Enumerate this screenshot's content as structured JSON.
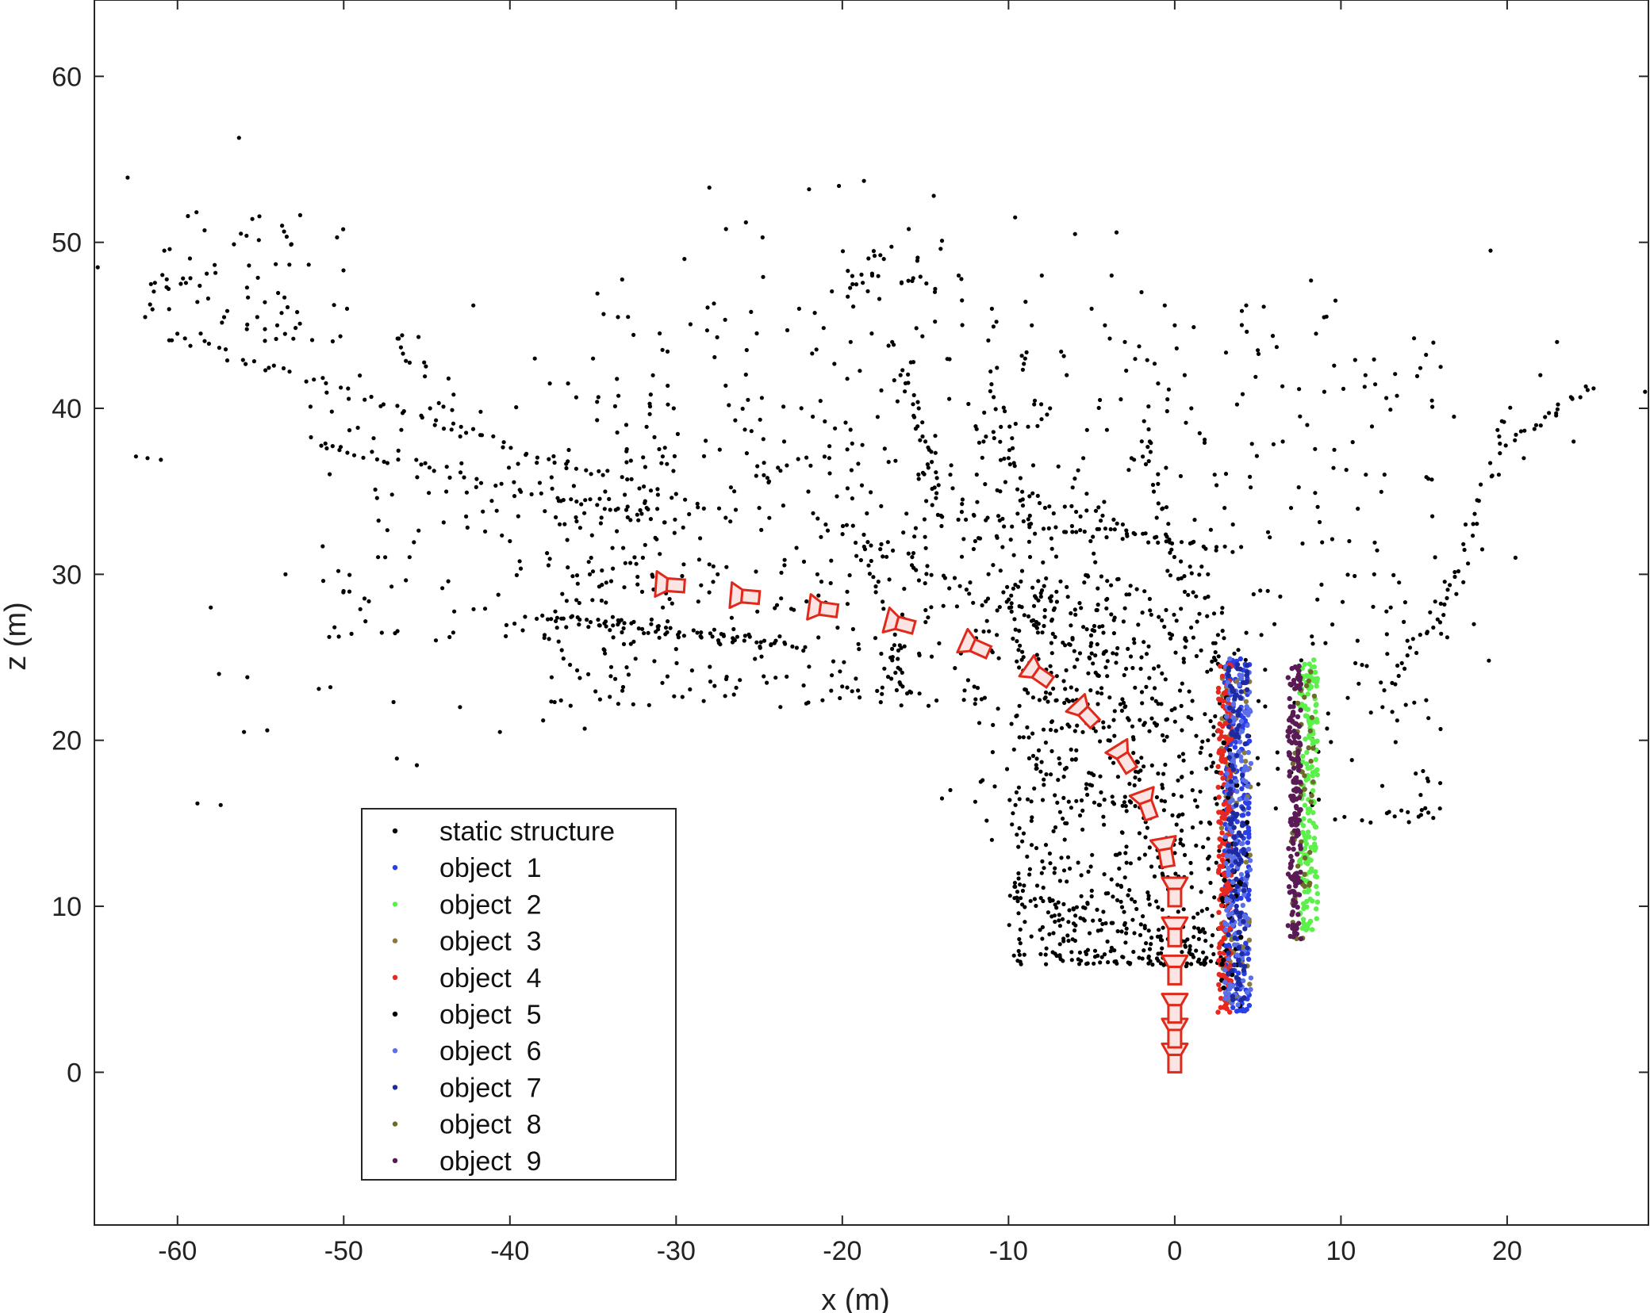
{
  "chart_data": {
    "type": "scatter",
    "title": "",
    "xlabel": "x (m)",
    "ylabel": "z (m)",
    "xlim": [
      -65,
      28.5
    ],
    "ylim": [
      -9.2,
      64.6
    ],
    "xticks": [
      -60,
      -50,
      -40,
      -30,
      -20,
      -10,
      0,
      10,
      20
    ],
    "yticks": [
      0,
      10,
      20,
      30,
      40,
      50,
      60
    ],
    "grid": false,
    "legend_position": "bottom-left",
    "series": [
      {
        "name": "static structure",
        "color": "#000000",
        "segments": [
          {
            "from": [
              -60,
              44.2
            ],
            "to": [
              -28,
              34
            ],
            "n": 70
          },
          {
            "from": [
              -52,
              38
            ],
            "to": [
              -30,
              33
            ],
            "n": 45
          },
          {
            "from": [
              -38,
              27.5
            ],
            "to": [
              -22,
              25.5
            ],
            "n": 45
          },
          {
            "from": [
              -20,
              33
            ],
            "to": [
              -5,
              25
            ],
            "n": 30
          },
          {
            "from": [
              -13,
              33.5
            ],
            "to": [
              4,
              31.5
            ],
            "n": 45
          },
          {
            "from": [
              -9,
              35
            ],
            "to": [
              -1,
              32
            ],
            "n": 20
          },
          {
            "from": [
              -10,
              11
            ],
            "to": [
              2,
              7
            ],
            "n": 35
          },
          {
            "from": [
              -7,
              7
            ],
            "to": [
              2,
              6.5
            ],
            "n": 30
          },
          {
            "from": [
              -16,
              42
            ],
            "to": [
              -14,
              33
            ],
            "n": 25
          },
          {
            "from": [
              -11,
              42
            ],
            "to": [
              -9,
              33
            ],
            "n": 20
          },
          {
            "from": [
              -19,
              32
            ],
            "to": [
              -16,
              23
            ],
            "n": 25
          },
          {
            "from": [
              16,
              26
            ],
            "to": [
              20,
              40
            ],
            "n": 30
          },
          {
            "from": [
              20,
              38
            ],
            "to": [
              25,
              41.3
            ],
            "n": 20
          },
          {
            "from": [
              13,
              23
            ],
            "to": [
              17,
              30
            ],
            "n": 20
          },
          {
            "from": [
              -2,
              39
            ],
            "to": [
              0,
              30
            ],
            "n": 25
          },
          {
            "from": [
              -47,
              44.5
            ],
            "to": [
              -45,
              42
            ],
            "n": 10
          },
          {
            "from": [
              -39,
              27.5
            ],
            "to": [
              -24,
              26
            ],
            "n": 25
          }
        ],
        "points": [
          [
            -64.8,
            48.5
          ],
          [
            -63,
            53.9
          ],
          [
            -62.5,
            37.1
          ],
          [
            -61.8,
            37
          ],
          [
            -61,
            36.9
          ],
          [
            -60.5,
            44.1
          ],
          [
            -59.8,
            47.5
          ],
          [
            -58.8,
            16.2
          ],
          [
            -57.4,
            16.1
          ],
          [
            -57.5,
            24
          ],
          [
            -58,
            28
          ],
          [
            -56.3,
            56.3
          ],
          [
            -56,
            20.5
          ],
          [
            -55.8,
            23.8
          ],
          [
            -55.2,
            45.5
          ],
          [
            -54.6,
            20.6
          ],
          [
            -54,
            45
          ],
          [
            -53.5,
            30
          ],
          [
            -52.8,
            45.8
          ],
          [
            -52,
            40.1
          ],
          [
            -51.5,
            23.1
          ],
          [
            -50.8,
            23.2
          ],
          [
            -50.4,
            50.3
          ],
          [
            -49.8,
            46
          ],
          [
            -49,
            27.9
          ],
          [
            -48.2,
            38.2
          ],
          [
            -47,
            22.3
          ],
          [
            -46.8,
            18.9
          ],
          [
            -45.6,
            18.5
          ],
          [
            -45.5,
            44.3
          ],
          [
            -44.8,
            40
          ],
          [
            -44,
            40.1
          ],
          [
            -43,
            22
          ],
          [
            -42.2,
            46.2
          ],
          [
            -40.6,
            20.5
          ],
          [
            -40,
            32
          ],
          [
            -39.5,
            33.5
          ],
          [
            -38.5,
            43
          ],
          [
            -38,
            21.2
          ],
          [
            -37.6,
            41.5
          ],
          [
            -36.5,
            41.5
          ],
          [
            -35.5,
            20.7
          ],
          [
            -35,
            43
          ],
          [
            -34.2,
            29.5
          ],
          [
            -33.5,
            45.5
          ],
          [
            -33,
            39
          ],
          [
            -32,
            31
          ],
          [
            -31.5,
            27
          ],
          [
            -30.8,
            28
          ],
          [
            -30,
            25.5
          ],
          [
            -29.5,
            49
          ],
          [
            -28.5,
            26.5
          ],
          [
            -28,
            53.3
          ],
          [
            -27.5,
            30
          ],
          [
            -27,
            50.8
          ],
          [
            -26.5,
            35
          ],
          [
            -25.8,
            51.2
          ],
          [
            -25,
            34
          ],
          [
            -24.8,
            50.3
          ],
          [
            -24,
            26
          ],
          [
            -23.5,
            38
          ],
          [
            -22.6,
            46
          ],
          [
            -22,
            53.2
          ],
          [
            -21.5,
            30
          ],
          [
            -21,
            33
          ],
          [
            -20.2,
            53.4
          ],
          [
            -19.5,
            44
          ],
          [
            -19,
            25.5
          ],
          [
            -18.7,
            53.7
          ],
          [
            -18.2,
            48
          ],
          [
            -17.5,
            49
          ],
          [
            -17,
            44
          ],
          [
            -16.5,
            42
          ],
          [
            -16,
            50.8
          ],
          [
            -15.4,
            40
          ],
          [
            -15,
            38
          ],
          [
            -14.5,
            52.8
          ],
          [
            -14,
            50.1
          ],
          [
            -13.5,
            36
          ],
          [
            -13,
            48
          ],
          [
            -12.8,
            46.5
          ],
          [
            -12,
            32
          ],
          [
            -11.5,
            38
          ],
          [
            -11,
            46
          ],
          [
            -10.5,
            35
          ],
          [
            -10,
            37
          ],
          [
            -9.6,
            51.5
          ],
          [
            -9,
            43
          ],
          [
            -8.6,
            45
          ],
          [
            -8,
            48
          ],
          [
            -7.5,
            40
          ],
          [
            -7,
            36.5
          ],
          [
            -6.5,
            42
          ],
          [
            -6,
            50.5
          ],
          [
            -5.5,
            37
          ],
          [
            -5,
            46
          ],
          [
            -4.5,
            40.5
          ],
          [
            -4.2,
            45
          ],
          [
            -3.8,
            48
          ],
          [
            -3.5,
            50.6
          ],
          [
            -3,
            44
          ],
          [
            -2.6,
            37
          ],
          [
            -2,
            47
          ],
          [
            -1.5,
            38
          ],
          [
            -1,
            41.5
          ],
          [
            -0.6,
            46.2
          ],
          [
            0,
            45
          ],
          [
            0.6,
            42
          ],
          [
            1,
            40
          ],
          [
            1.5,
            38.5
          ],
          [
            2,
            30
          ],
          [
            2.4,
            36
          ],
          [
            3,
            34
          ],
          [
            3.5,
            33
          ],
          [
            4.3,
            46.2
          ],
          [
            5,
            43.5
          ],
          [
            5.6,
            29
          ],
          [
            6,
            27
          ],
          [
            6.5,
            38
          ],
          [
            7,
            34
          ],
          [
            8.2,
            47.7
          ],
          [
            8.5,
            44.5
          ],
          [
            9,
            41
          ],
          [
            9.6,
            37.5
          ],
          [
            10.5,
            32
          ],
          [
            11,
            26
          ],
          [
            11.5,
            36
          ],
          [
            12,
            30
          ],
          [
            12.5,
            22
          ],
          [
            13,
            28
          ],
          [
            13.4,
            24.5
          ],
          [
            14,
            26
          ],
          [
            14.5,
            18
          ],
          [
            15.2,
            17.7
          ],
          [
            15.5,
            33.5
          ],
          [
            16,
            42.5
          ],
          [
            16.8,
            39.5
          ],
          [
            17.5,
            33
          ],
          [
            18,
            27
          ],
          [
            18.5,
            31.5
          ],
          [
            18.9,
            24.8
          ],
          [
            19,
            49.5
          ],
          [
            19.5,
            36
          ],
          [
            20.5,
            31
          ],
          [
            21,
            37
          ],
          [
            22,
            42
          ],
          [
            23,
            44
          ],
          [
            24,
            38
          ],
          [
            25.2,
            41.2
          ],
          [
            28.3,
            41
          ],
          [
            -13.5,
            17
          ],
          [
            -14,
            16.5
          ],
          [
            -12,
            16.3
          ],
          [
            -11,
            14
          ],
          [
            -8,
            12
          ],
          [
            -6.5,
            15
          ],
          [
            -5,
            18
          ],
          [
            -4,
            20
          ],
          [
            -3,
            22
          ],
          [
            -2,
            25
          ],
          [
            -1,
            18
          ],
          [
            0,
            14
          ],
          [
            1,
            12
          ],
          [
            2,
            20
          ]
        ],
        "random_clouds": [
          {
            "x": [
              -38,
              -4
            ],
            "y": [
              22,
              36
            ],
            "n": 380
          },
          {
            "x": [
              -52,
              -30
            ],
            "y": [
              26,
              42
            ],
            "n": 140
          },
          {
            "x": [
              -35,
              -8
            ],
            "y": [
              36,
              48
            ],
            "n": 150
          },
          {
            "x": [
              -10,
              3
            ],
            "y": [
              6.5,
              30
            ],
            "n": 650
          },
          {
            "x": [
              -12,
              4
            ],
            "y": [
              15,
              45
            ],
            "n": 170
          },
          {
            "x": [
              4,
              16
            ],
            "y": [
              15,
              47
            ],
            "n": 150
          },
          {
            "x": [
              -62,
              -50
            ],
            "y": [
              44,
              52
            ],
            "n": 70
          },
          {
            "x": [
              -20,
              -14
            ],
            "y": [
              47,
              50
            ],
            "n": 25
          }
        ]
      },
      {
        "name": "object  1",
        "color": "#2a3fe8",
        "band": {
          "x": [
            3.0,
            4.5
          ],
          "y": [
            3.6,
            25.0
          ]
        },
        "n": 260
      },
      {
        "name": "object  2",
        "color": "#5cf04a",
        "band": {
          "x": [
            7.5,
            8.6
          ],
          "y": [
            8.5,
            25.0
          ]
        },
        "n": 180
      },
      {
        "name": "object  3",
        "color": "#8a7a3a",
        "band": {
          "x": [
            2.8,
            4.6
          ],
          "y": [
            4.0,
            24.5
          ]
        },
        "n": 60
      },
      {
        "name": "object  4",
        "color": "#e8281e",
        "band": {
          "x": [
            2.6,
            3.4
          ],
          "y": [
            3.3,
            24.8
          ]
        },
        "n": 200
      },
      {
        "name": "object  5",
        "color": "#000000",
        "band": {
          "x": [
            2.8,
            4.4
          ],
          "y": [
            4.0,
            24.5
          ]
        },
        "n": 40
      },
      {
        "name": "object  6",
        "color": "#5a6fe8",
        "band": {
          "x": [
            3.0,
            4.6
          ],
          "y": [
            4.0,
            25.0
          ]
        },
        "n": 180
      },
      {
        "name": "object  7",
        "color": "#1e2aa0",
        "band": {
          "x": [
            3.2,
            4.4
          ],
          "y": [
            4.0,
            24.8
          ]
        },
        "n": 120
      },
      {
        "name": "object  8",
        "color": "#6b6b2a",
        "band": {
          "x": [
            7.0,
            8.4
          ],
          "y": [
            8.0,
            24.5
          ]
        },
        "n": 50
      },
      {
        "name": "object  9",
        "color": "#5a1a55",
        "band": {
          "x": [
            6.8,
            7.6
          ],
          "y": [
            8.0,
            24.5
          ]
        },
        "n": 170
      }
    ],
    "camera_trajectory": {
      "color": "#e0291b",
      "fill": "#fbe4e2",
      "poses": [
        {
          "x": 0,
          "z": 0,
          "heading_deg": 0
        },
        {
          "x": 0,
          "z": 1.5,
          "heading_deg": 0
        },
        {
          "x": 0,
          "z": 3.0,
          "heading_deg": 0
        },
        {
          "x": 0,
          "z": 5.3,
          "heading_deg": 0
        },
        {
          "x": 0,
          "z": 7.6,
          "heading_deg": 0
        },
        {
          "x": 0,
          "z": 10.0,
          "heading_deg": 0
        },
        {
          "x": -0.4,
          "z": 12.4,
          "heading_deg": 10
        },
        {
          "x": -1.4,
          "z": 15.3,
          "heading_deg": 20
        },
        {
          "x": -2.6,
          "z": 18.2,
          "heading_deg": 32
        },
        {
          "x": -4.8,
          "z": 21.0,
          "heading_deg": 43
        },
        {
          "x": -7.5,
          "z": 23.5,
          "heading_deg": 55
        },
        {
          "x": -11.2,
          "z": 25.3,
          "heading_deg": 66
        },
        {
          "x": -15.7,
          "z": 26.8,
          "heading_deg": 75
        },
        {
          "x": -20.3,
          "z": 27.8,
          "heading_deg": 82
        },
        {
          "x": -25.0,
          "z": 28.6,
          "heading_deg": 85
        },
        {
          "x": -29.5,
          "z": 29.3,
          "heading_deg": 86
        }
      ]
    }
  }
}
